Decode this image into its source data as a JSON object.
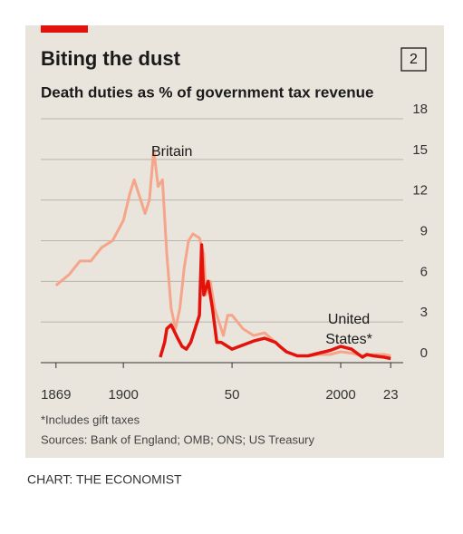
{
  "chart_data": {
    "type": "line",
    "panel_number": "2",
    "title": "Biting the dust",
    "subtitle": "Death duties as % of government tax revenue",
    "footnote": "*Includes gift taxes",
    "source": "Sources: Bank of England; OMB; ONS; US Treasury",
    "credit": "CHART: THE ECONOMIST",
    "xlim": [
      1862,
      2030
    ],
    "xticks": [
      1869,
      1900,
      {
        "value": 1950,
        "label": "50"
      },
      2000,
      {
        "value": 2023,
        "label": "23"
      }
    ],
    "ylim": [
      0,
      18
    ],
    "yticks": [
      0,
      3,
      6,
      9,
      12,
      15,
      18
    ],
    "grid": true,
    "series": [
      {
        "label_lines": [
          "Britain"
        ],
        "color": "#f4a58a",
        "x": [
          1869,
          1875,
          1880,
          1885,
          1890,
          1895,
          1900,
          1903,
          1905,
          1908,
          1910,
          1912,
          1914,
          1916,
          1918,
          1920,
          1922,
          1924,
          1926,
          1928,
          1930,
          1932,
          1935,
          1937,
          1938,
          1940,
          1942,
          1944,
          1946,
          1948,
          1950,
          1955,
          1960,
          1965,
          1970,
          1975,
          1980,
          1985,
          1990,
          1995,
          2000,
          2005,
          2010,
          2015,
          2020,
          2023
        ],
        "values": [
          5.7,
          6.5,
          7.5,
          7.5,
          8.5,
          9.0,
          10.5,
          12.5,
          13.5,
          12,
          11,
          12,
          15.7,
          13,
          13.5,
          8,
          4,
          2.5,
          4,
          7,
          9,
          9.5,
          9.2,
          8,
          5,
          6,
          4,
          3,
          2,
          3.5,
          3.5,
          2.5,
          2.0,
          2.2,
          1.5,
          0.8,
          0.5,
          0.5,
          0.6,
          0.6,
          0.8,
          0.7,
          0.5,
          0.6,
          0.6,
          0.5
        ]
      },
      {
        "label_lines": [
          "United",
          "States*"
        ],
        "color": "#e3120b",
        "x": [
          1917,
          1919,
          1920,
          1922,
          1925,
          1927,
          1929,
          1931,
          1933,
          1935,
          1936,
          1937,
          1939,
          1941,
          1943,
          1945,
          1948,
          1950,
          1955,
          1960,
          1965,
          1970,
          1972,
          1975,
          1980,
          1985,
          1990,
          1995,
          2000,
          2005,
          2010,
          2012,
          2015,
          2020,
          2023
        ],
        "values": [
          0.4,
          1.5,
          2.5,
          2.8,
          1.8,
          1.2,
          1.0,
          1.5,
          2.5,
          3.5,
          8.7,
          5,
          6,
          4,
          1.5,
          1.5,
          1.2,
          1.0,
          1.3,
          1.6,
          1.8,
          1.5,
          1.2,
          0.8,
          0.5,
          0.5,
          0.7,
          0.9,
          1.2,
          1.0,
          0.4,
          0.6,
          0.5,
          0.4,
          0.3
        ]
      }
    ]
  }
}
